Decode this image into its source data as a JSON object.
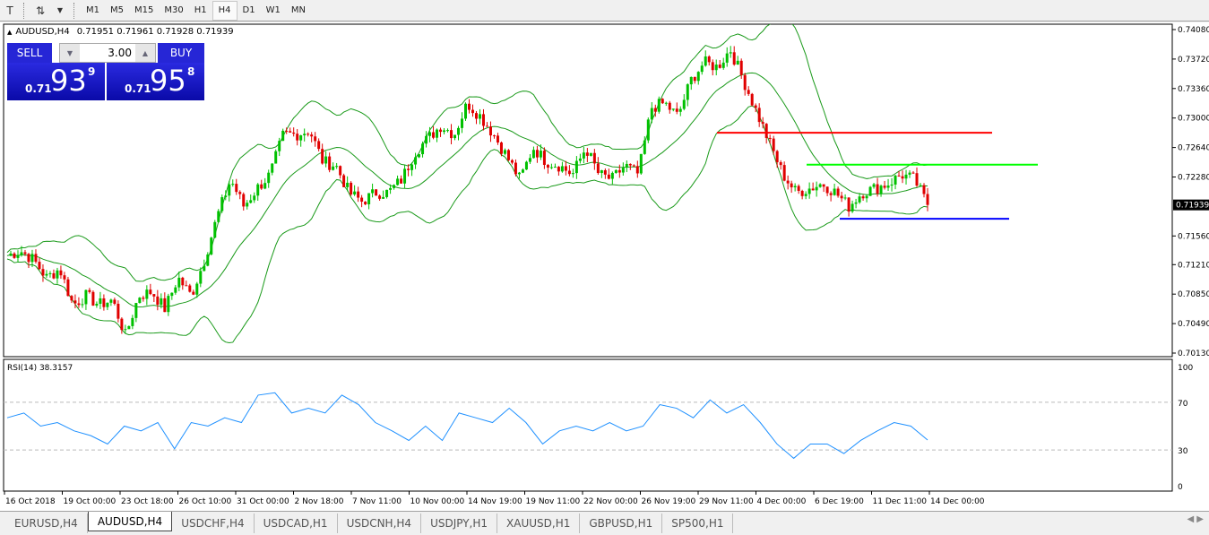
{
  "toolbar": {
    "icons": [
      "text-icon",
      "arrows-icon",
      "dropdown-icon"
    ],
    "timeframes": [
      "M1",
      "M5",
      "M15",
      "M30",
      "H1",
      "H4",
      "D1",
      "W1",
      "MN"
    ],
    "active": "H4"
  },
  "header": {
    "symbol": "AUDUSD,H4",
    "ohlc": "0.71951 0.71961 0.71928 0.71939"
  },
  "trade_panel": {
    "sell_label": "SELL",
    "buy_label": "BUY",
    "lot": "3.00",
    "sell": {
      "prefix": "0.71",
      "big": "93",
      "sup": "9"
    },
    "buy": {
      "prefix": "0.71",
      "big": "95",
      "sup": "8"
    },
    "color": "#1e1ed0"
  },
  "tabs": [
    "EURUSD,H4",
    "AUDUSD,H4",
    "USDCHF,H4",
    "USDCAD,H1",
    "USDCNH,H4",
    "USDJPY,H1",
    "XAUUSD,H1",
    "GBPUSD,H1",
    "SP500,H1"
  ],
  "active_tab": "AUDUSD,H4",
  "chart_data": {
    "type": "candlestick",
    "price_axis": {
      "ticks": [
        "0.74080",
        "0.73720",
        "0.73360",
        "0.73000",
        "0.72640",
        "0.72280",
        "0.71560",
        "0.71210",
        "0.70850",
        "0.70490",
        "0.70130"
      ],
      "range": [
        0.7013,
        0.7408
      ],
      "current": "0.71939"
    },
    "time_axis": [
      "16 Oct 2018",
      "19 Oct 00:00",
      "23 Oct 18:00",
      "26 Oct 10:00",
      "31 Oct 00:00",
      "2 Nov 18:00",
      "7 Nov 11:00",
      "10 Nov 00:00",
      "14 Nov 19:00",
      "19 Nov 11:00",
      "22 Nov 00:00",
      "26 Nov 19:00",
      "29 Nov 11:00",
      "4 Dec 00:00",
      "6 Dec 19:00",
      "11 Dec 11:00",
      "14 Dec 00:00"
    ],
    "closes": [
      0.7132,
      0.7138,
      0.7127,
      0.7105,
      0.7116,
      0.7072,
      0.7083,
      0.7072,
      0.7078,
      0.7034,
      0.7083,
      0.7088,
      0.7067,
      0.7105,
      0.7083,
      0.7127,
      0.7181,
      0.7225,
      0.7192,
      0.7214,
      0.7231,
      0.728,
      0.728,
      0.7285,
      0.7247,
      0.7242,
      0.7209,
      0.7198,
      0.7209,
      0.7209,
      0.7225,
      0.7258,
      0.7275,
      0.7291,
      0.728,
      0.7318,
      0.7302,
      0.728,
      0.7253,
      0.7225,
      0.7264,
      0.7247,
      0.7242,
      0.7231,
      0.7264,
      0.7231,
      0.7225,
      0.7242,
      0.7231,
      0.7313,
      0.7318,
      0.7302,
      0.7346,
      0.7368,
      0.7362,
      0.7384,
      0.7346,
      0.7307,
      0.7269,
      0.7231,
      0.7209,
      0.7214,
      0.722,
      0.7209,
      0.7192,
      0.7209,
      0.7214,
      0.722,
      0.7231,
      0.7225,
      0.71939
    ],
    "indicators": {
      "bollinger_color": "#1a9a1a",
      "up_color": "#00c000",
      "down_color": "#e00000"
    },
    "levels": [
      {
        "price": 0.7282,
        "color": "#ff0000"
      },
      {
        "price": 0.7243,
        "color": "#00ff00"
      },
      {
        "price": 0.7177,
        "color": "#0000ff"
      }
    ],
    "rsi": {
      "label": "RSI(14) 38.3157",
      "ticks": [
        "100",
        "70",
        "30",
        "0"
      ],
      "levels": [
        70,
        30
      ],
      "color": "#1e90ff",
      "values": [
        57,
        61,
        50,
        53,
        46,
        42,
        35,
        50,
        46,
        53,
        31,
        53,
        50,
        57,
        53,
        76,
        78,
        61,
        65,
        61,
        76,
        68,
        53,
        46,
        38,
        50,
        38,
        61,
        57,
        53,
        65,
        53,
        35,
        46,
        50,
        46,
        53,
        46,
        50,
        68,
        65,
        57,
        72,
        61,
        68,
        53,
        35,
        23,
        35,
        35,
        27,
        38,
        46,
        53,
        50,
        38.3157
      ]
    }
  }
}
